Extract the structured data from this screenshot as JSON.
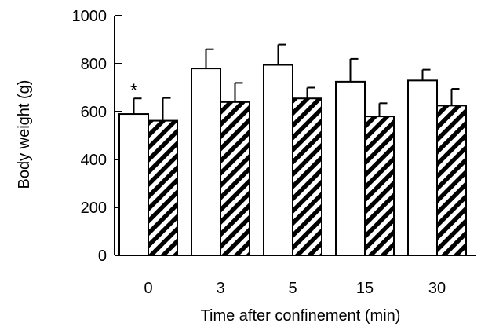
{
  "chart_data": {
    "type": "bar",
    "title": "",
    "xlabel": "Time after confinement (min)",
    "ylabel": "Body weight (g)",
    "ylim": [
      0,
      1000
    ],
    "yticks": [
      "0",
      "200",
      "400",
      "600",
      "800",
      "1000"
    ],
    "categories": [
      "0",
      "3",
      "5",
      "15",
      "30"
    ],
    "series": [
      {
        "fill": "open",
        "values": [
          590,
          780,
          795,
          725,
          730
        ],
        "errors": [
          65,
          80,
          85,
          95,
          45
        ]
      },
      {
        "fill": "hatched",
        "values": [
          562,
          640,
          655,
          580,
          625
        ],
        "errors": [
          95,
          80,
          45,
          55,
          70
        ]
      }
    ],
    "annotations": [
      {
        "text": "*",
        "category": "0",
        "series_index": 0
      }
    ],
    "grid": false,
    "legend": "none"
  },
  "colors": {
    "axis": "#000000",
    "bar_open_fill": "#ffffff",
    "bar_edge": "#000000",
    "hatch": "#000000"
  }
}
